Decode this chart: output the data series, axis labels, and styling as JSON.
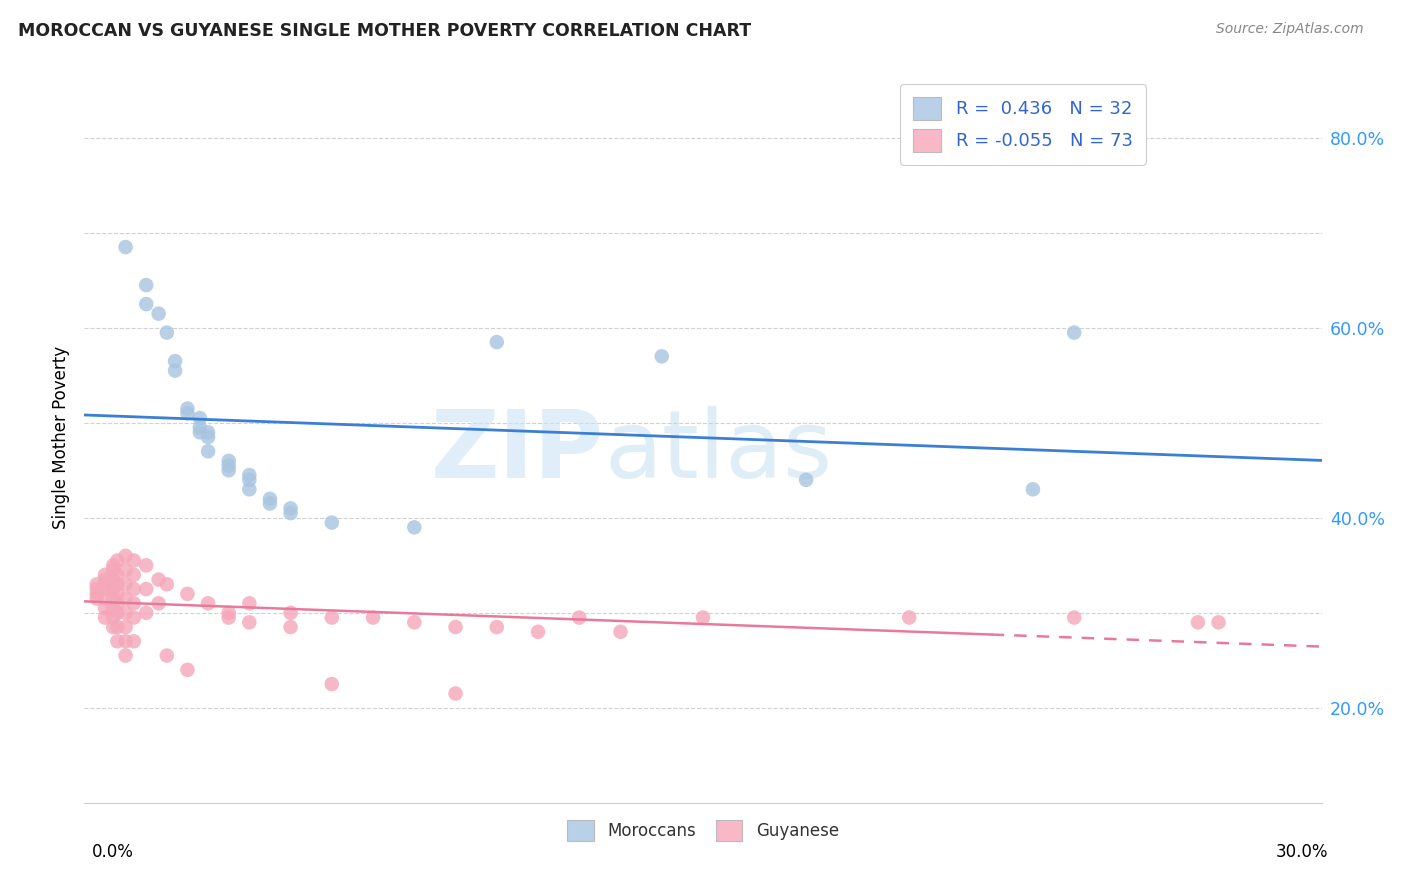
{
  "title": "MOROCCAN VS GUYANESE SINGLE MOTHER POVERTY CORRELATION CHART",
  "source": "Source: ZipAtlas.com",
  "ylabel": "Single Mother Poverty",
  "y_tick_vals": [
    0.2,
    0.3,
    0.4,
    0.5,
    0.6,
    0.7,
    0.8
  ],
  "y_tick_labels": [
    "20.0%",
    "",
    "40.0%",
    "",
    "60.0%",
    "",
    "80.0%"
  ],
  "xlim": [
    0.0,
    0.3
  ],
  "ylim": [
    0.1,
    0.87
  ],
  "watermark_zip": "ZIP",
  "watermark_atlas": "atlas",
  "moroccan_color": "#a8c4e0",
  "guyanese_color": "#f4a7b9",
  "moroccan_line_color": "#3a7fd5",
  "guyanese_line_color": "#e8799a",
  "legend_moroccan_color": "#b8d0e8",
  "legend_guyanese_color": "#f9b8c8",
  "moroccan_scatter": [
    [
      0.01,
      0.685
    ],
    [
      0.015,
      0.625
    ],
    [
      0.015,
      0.645
    ],
    [
      0.018,
      0.615
    ],
    [
      0.02,
      0.595
    ],
    [
      0.022,
      0.555
    ],
    [
      0.022,
      0.565
    ],
    [
      0.025,
      0.515
    ],
    [
      0.025,
      0.51
    ],
    [
      0.028,
      0.505
    ],
    [
      0.028,
      0.495
    ],
    [
      0.028,
      0.49
    ],
    [
      0.03,
      0.49
    ],
    [
      0.03,
      0.485
    ],
    [
      0.03,
      0.47
    ],
    [
      0.035,
      0.46
    ],
    [
      0.035,
      0.455
    ],
    [
      0.035,
      0.45
    ],
    [
      0.04,
      0.445
    ],
    [
      0.04,
      0.44
    ],
    [
      0.04,
      0.43
    ],
    [
      0.045,
      0.42
    ],
    [
      0.045,
      0.415
    ],
    [
      0.05,
      0.41
    ],
    [
      0.05,
      0.405
    ],
    [
      0.06,
      0.395
    ],
    [
      0.08,
      0.39
    ],
    [
      0.1,
      0.585
    ],
    [
      0.14,
      0.57
    ],
    [
      0.175,
      0.44
    ],
    [
      0.23,
      0.43
    ],
    [
      0.24,
      0.595
    ]
  ],
  "guyanese_scatter": [
    [
      0.003,
      0.33
    ],
    [
      0.003,
      0.325
    ],
    [
      0.003,
      0.32
    ],
    [
      0.003,
      0.315
    ],
    [
      0.005,
      0.34
    ],
    [
      0.005,
      0.335
    ],
    [
      0.005,
      0.33
    ],
    [
      0.005,
      0.325
    ],
    [
      0.005,
      0.315
    ],
    [
      0.005,
      0.305
    ],
    [
      0.005,
      0.295
    ],
    [
      0.007,
      0.35
    ],
    [
      0.007,
      0.345
    ],
    [
      0.007,
      0.335
    ],
    [
      0.007,
      0.325
    ],
    [
      0.007,
      0.315
    ],
    [
      0.007,
      0.305
    ],
    [
      0.007,
      0.295
    ],
    [
      0.007,
      0.285
    ],
    [
      0.008,
      0.355
    ],
    [
      0.008,
      0.34
    ],
    [
      0.008,
      0.33
    ],
    [
      0.008,
      0.32
    ],
    [
      0.008,
      0.31
    ],
    [
      0.008,
      0.3
    ],
    [
      0.008,
      0.285
    ],
    [
      0.008,
      0.27
    ],
    [
      0.01,
      0.36
    ],
    [
      0.01,
      0.345
    ],
    [
      0.01,
      0.33
    ],
    [
      0.01,
      0.315
    ],
    [
      0.01,
      0.3
    ],
    [
      0.01,
      0.285
    ],
    [
      0.01,
      0.27
    ],
    [
      0.01,
      0.255
    ],
    [
      0.012,
      0.355
    ],
    [
      0.012,
      0.34
    ],
    [
      0.012,
      0.325
    ],
    [
      0.012,
      0.31
    ],
    [
      0.012,
      0.295
    ],
    [
      0.012,
      0.27
    ],
    [
      0.015,
      0.35
    ],
    [
      0.015,
      0.325
    ],
    [
      0.015,
      0.3
    ],
    [
      0.018,
      0.335
    ],
    [
      0.018,
      0.31
    ],
    [
      0.02,
      0.33
    ],
    [
      0.02,
      0.255
    ],
    [
      0.025,
      0.32
    ],
    [
      0.025,
      0.24
    ],
    [
      0.03,
      0.31
    ],
    [
      0.035,
      0.3
    ],
    [
      0.035,
      0.295
    ],
    [
      0.04,
      0.31
    ],
    [
      0.04,
      0.29
    ],
    [
      0.05,
      0.3
    ],
    [
      0.05,
      0.285
    ],
    [
      0.06,
      0.295
    ],
    [
      0.06,
      0.225
    ],
    [
      0.07,
      0.295
    ],
    [
      0.08,
      0.29
    ],
    [
      0.09,
      0.285
    ],
    [
      0.09,
      0.215
    ],
    [
      0.1,
      0.285
    ],
    [
      0.11,
      0.28
    ],
    [
      0.12,
      0.295
    ],
    [
      0.13,
      0.28
    ],
    [
      0.15,
      0.295
    ],
    [
      0.2,
      0.295
    ],
    [
      0.24,
      0.295
    ],
    [
      0.27,
      0.29
    ],
    [
      0.275,
      0.29
    ]
  ]
}
